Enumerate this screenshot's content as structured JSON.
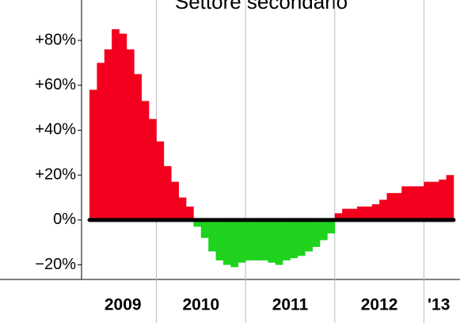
{
  "chart_data": {
    "type": "bar",
    "title": "Settore secondario",
    "categories": [
      null,
      null,
      null,
      null,
      null,
      null,
      null,
      null,
      null,
      null,
      null,
      null,
      null,
      null,
      null,
      null,
      null,
      null,
      null,
      null,
      null,
      null,
      null,
      null,
      null,
      null,
      null,
      null,
      null,
      null,
      null,
      null,
      null,
      null,
      null,
      null,
      null,
      null,
      null,
      null,
      null,
      null,
      null,
      null,
      null,
      null,
      null,
      null,
      null
    ],
    "values": [
      58,
      70,
      76,
      85,
      83,
      76,
      65,
      53,
      45,
      35,
      24,
      17,
      10,
      6,
      -3,
      -8,
      -14,
      -18,
      -20,
      -21,
      -19,
      -18,
      -18,
      -18,
      -19,
      -20,
      -18,
      -17,
      -16,
      -14,
      -12,
      -9,
      -6,
      3,
      5,
      5,
      6,
      6,
      7,
      9,
      12,
      12,
      15,
      15,
      15,
      17,
      17,
      18,
      20
    ],
    "positive_color": "#f2001e",
    "negative_color": "#1ed21e",
    "year_labels": [
      "2009",
      "2010",
      "2011",
      "2012",
      "'13"
    ],
    "ylim": [
      -26.5,
      98
    ],
    "yticks": [
      {
        "value": -20,
        "label": "−20%"
      },
      {
        "value": 0,
        "label": "0%"
      },
      {
        "value": 20,
        "label": "+20%"
      },
      {
        "value": 40,
        "label": "+40%"
      },
      {
        "value": 60,
        "label": "+60%"
      },
      {
        "value": 80,
        "label": "+80%"
      }
    ],
    "grid": true
  }
}
